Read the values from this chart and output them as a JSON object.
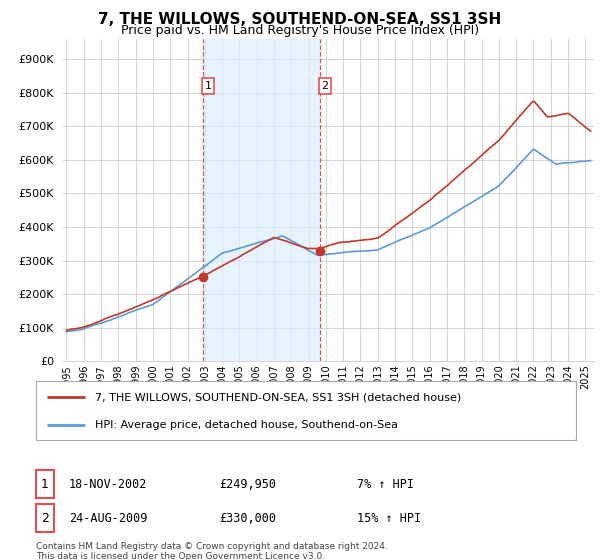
{
  "title": "7, THE WILLOWS, SOUTHEND-ON-SEA, SS1 3SH",
  "subtitle": "Price paid vs. HM Land Registry's House Price Index (HPI)",
  "ytick_values": [
    0,
    100000,
    200000,
    300000,
    400000,
    500000,
    600000,
    700000,
    800000,
    900000
  ],
  "ylim": [
    0,
    960000
  ],
  "xlim_start": 1994.8,
  "xlim_end": 2025.5,
  "sale1_date": 2002.88,
  "sale1_price": 249950,
  "sale2_date": 2009.65,
  "sale2_price": 330000,
  "sale1_text": "18-NOV-2002",
  "sale1_amount": "£249,950",
  "sale1_hpi": "7% ↑ HPI",
  "sale2_text": "24-AUG-2009",
  "sale2_amount": "£330,000",
  "sale2_hpi": "15% ↑ HPI",
  "hpi_color": "#5b9bd5",
  "price_color": "#c0392b",
  "vline_color": "#e05050",
  "shade_color": "#ddeeff",
  "grid_color": "#cccccc",
  "background_color": "#ffffff",
  "legend_label_price": "7, THE WILLOWS, SOUTHEND-ON-SEA, SS1 3SH (detached house)",
  "legend_label_hpi": "HPI: Average price, detached house, Southend-on-Sea",
  "footer": "Contains HM Land Registry data © Crown copyright and database right 2024.\nThis data is licensed under the Open Government Licence v3.0.",
  "xtick_years": [
    1995,
    1996,
    1997,
    1998,
    1999,
    2000,
    2001,
    2002,
    2003,
    2004,
    2005,
    2006,
    2007,
    2008,
    2009,
    2010,
    2011,
    2012,
    2013,
    2014,
    2015,
    2016,
    2017,
    2018,
    2019,
    2020,
    2021,
    2022,
    2023,
    2024,
    2025
  ]
}
